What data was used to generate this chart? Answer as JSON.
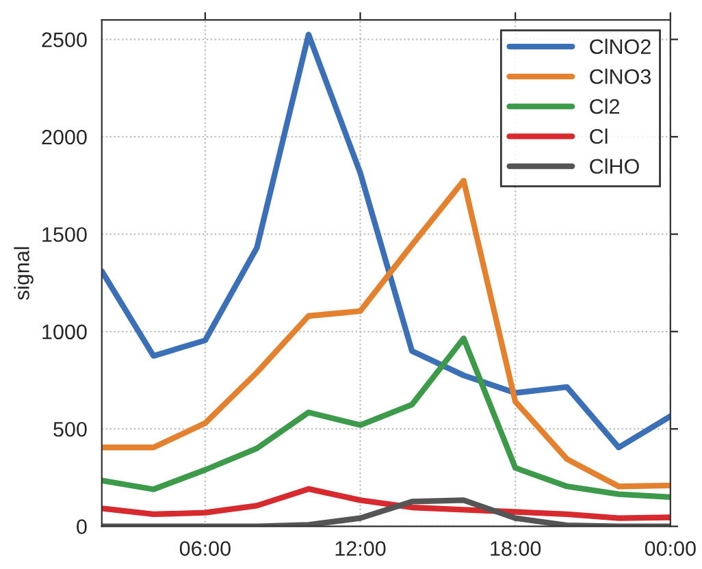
{
  "chart_data": {
    "type": "line",
    "ylabel": "signal",
    "x": [
      2,
      4,
      6,
      8,
      10,
      12,
      14,
      16,
      18,
      20,
      22,
      24
    ],
    "xlim": [
      2,
      24
    ],
    "xticks": [
      {
        "value": 6,
        "label": "06:00"
      },
      {
        "value": 12,
        "label": "12:00"
      },
      {
        "value": 18,
        "label": "18:00"
      },
      {
        "value": 24,
        "label": "00:00"
      }
    ],
    "ylim": [
      0,
      2600
    ],
    "yticks": [
      0,
      500,
      1000,
      1500,
      2000,
      2500
    ],
    "grid": true,
    "legend": "top right",
    "line_style": "solid",
    "series": [
      {
        "name": "ClNO2",
        "color": "#3b6fb6",
        "values": [
          1310,
          875,
          955,
          1430,
          2525,
          1815,
          900,
          775,
          685,
          715,
          405,
          565
        ]
      },
      {
        "name": "ClNO3",
        "color": "#e3812e",
        "values": [
          405,
          405,
          530,
          790,
          1080,
          1105,
          1445,
          1775,
          640,
          345,
          205,
          210
        ]
      },
      {
        "name": "Cl2",
        "color": "#3e9a4b",
        "values": [
          235,
          190,
          290,
          400,
          585,
          520,
          625,
          965,
          300,
          205,
          165,
          150
        ]
      },
      {
        "name": "Cl",
        "color": "#d62a2e",
        "values": [
          92,
          62,
          70,
          106,
          192,
          134,
          97,
          85,
          74,
          62,
          42,
          46
        ]
      },
      {
        "name": "ClHO",
        "color": "#555555",
        "values": [
          0,
          0,
          0,
          0,
          8,
          42,
          127,
          134,
          42,
          5,
          0,
          0
        ]
      }
    ]
  }
}
